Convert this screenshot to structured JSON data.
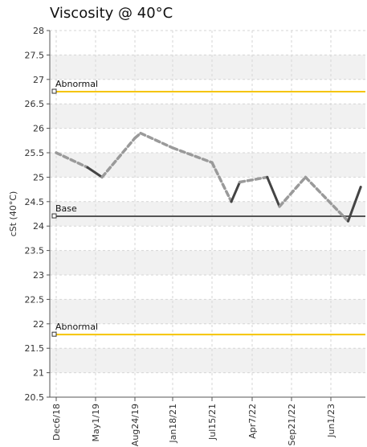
{
  "chart_data": {
    "type": "line",
    "title": "Viscosity @ 40°C",
    "ylabel": "cSt (40°C)",
    "xlabel": "",
    "ylim": [
      20.5,
      28
    ],
    "yticks": [
      "28",
      "27.5",
      "27",
      "26.5",
      "26",
      "25.5",
      "25",
      "24.5",
      "24",
      "23.5",
      "23",
      "22.5",
      "22",
      "21.5",
      "21",
      "20.5"
    ],
    "xticks": [
      {
        "label": "Dec6/18",
        "date": "2018-12-06"
      },
      {
        "label": "May1/19",
        "date": "2019-05-01"
      },
      {
        "label": "Aug24/19",
        "date": "2019-08-24"
      },
      {
        "label": "Jan18/21",
        "date": "2021-01-18"
      },
      {
        "label": "Jul15/21",
        "date": "2021-07-15"
      },
      {
        "label": "Apr7/22",
        "date": "2022-04-07"
      },
      {
        "label": "Sep21/22",
        "date": "2022-09-21"
      },
      {
        "label": "Jun1/23",
        "date": "2023-06-01"
      }
    ],
    "grid": true,
    "reference_lines": [
      {
        "label": "Abnormal",
        "value": 26.75,
        "color": "#f5c400"
      },
      {
        "label": "Base",
        "value": 24.2,
        "color": "#555555"
      },
      {
        "label": "Abnormal",
        "value": 21.78,
        "color": "#f5c400"
      }
    ],
    "series": [
      {
        "color_dashed": "#9a9a9a",
        "color_solid": "#444444",
        "points": [
          {
            "x": "2018-12-06",
            "y": 25.5
          },
          {
            "x": "2019-04-01",
            "y": 25.2
          },
          {
            "x": "2019-05-20",
            "y": 25.0
          },
          {
            "x": "2019-08-24",
            "y": 25.8
          },
          {
            "x": "2019-11-10",
            "y": 25.9
          },
          {
            "x": "2021-01-18",
            "y": 25.6
          },
          {
            "x": "2021-07-15",
            "y": 25.3
          },
          {
            "x": "2021-11-20",
            "y": 24.5
          },
          {
            "x": "2022-01-15",
            "y": 24.9
          },
          {
            "x": "2022-06-10",
            "y": 25.0
          },
          {
            "x": "2022-08-01",
            "y": 24.4
          },
          {
            "x": "2022-12-20",
            "y": 25.0
          },
          {
            "x": "2023-09-20",
            "y": 24.1
          },
          {
            "x": "2023-12-10",
            "y": 24.8
          }
        ],
        "segment_styles": [
          "dashed",
          "solid",
          "dashed",
          "dashed",
          "dashed",
          "dashed",
          "dashed",
          "solid",
          "dashed",
          "solid",
          "dashed",
          "dashed",
          "solid"
        ]
      }
    ]
  }
}
